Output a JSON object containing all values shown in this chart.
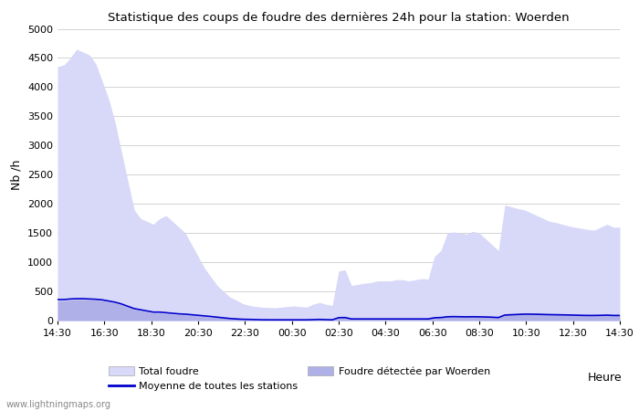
{
  "title": "Statistique des coups de foudre des dernières 24h pour la station: Woerden",
  "xlabel": "Heure",
  "ylabel": "Nb /h",
  "watermark": "www.lightningmaps.org",
  "ylim": [
    0,
    5000
  ],
  "yticks": [
    0,
    500,
    1000,
    1500,
    2000,
    2500,
    3000,
    3500,
    4000,
    4500,
    5000
  ],
  "xtick_labels": [
    "14:30",
    "16:30",
    "18:30",
    "20:30",
    "22:30",
    "00:30",
    "02:30",
    "04:30",
    "06:30",
    "08:30",
    "10:30",
    "12:30",
    "14:30"
  ],
  "color_total": "#d8d8f8",
  "color_woerden": "#b0b0e8",
  "color_mean": "#0000cc",
  "total_foudre": [
    4350,
    4380,
    4500,
    4650,
    4600,
    4550,
    4400,
    4100,
    3800,
    3400,
    2900,
    2400,
    1900,
    1750,
    1700,
    1650,
    1750,
    1800,
    1700,
    1600,
    1500,
    1300,
    1100,
    900,
    750,
    600,
    500,
    400,
    350,
    290,
    260,
    240,
    230,
    225,
    220,
    230,
    240,
    250,
    240,
    230,
    280,
    310,
    280,
    260,
    850,
    870,
    600,
    620,
    640,
    650,
    680,
    680,
    680,
    700,
    700,
    680,
    700,
    720,
    710,
    1100,
    1200,
    1500,
    1520,
    1500,
    1480,
    1530,
    1500,
    1400,
    1300,
    1200,
    1980,
    1950,
    1920,
    1900,
    1850,
    1800,
    1750,
    1700,
    1680,
    1650,
    1620,
    1600,
    1580,
    1560,
    1550,
    1600,
    1650,
    1600,
    1600
  ],
  "woerden_foudre": [
    340,
    340,
    350,
    360,
    360,
    355,
    350,
    340,
    320,
    300,
    270,
    230,
    190,
    170,
    150,
    130,
    130,
    120,
    110,
    100,
    100,
    90,
    80,
    70,
    60,
    50,
    40,
    30,
    25,
    20,
    18,
    15,
    12,
    12,
    12,
    12,
    12,
    12,
    12,
    12,
    15,
    18,
    15,
    12,
    50,
    55,
    30,
    30,
    30,
    30,
    30,
    30,
    30,
    30,
    30,
    30,
    30,
    30,
    30,
    50,
    55,
    70,
    72,
    70,
    68,
    70,
    68,
    65,
    60,
    55,
    100,
    105,
    110,
    115,
    115,
    110,
    108,
    105,
    102,
    100,
    98,
    95,
    92,
    90,
    90,
    92,
    95,
    90,
    90
  ],
  "mean_foudre": [
    360,
    360,
    370,
    375,
    375,
    370,
    365,
    355,
    335,
    315,
    285,
    245,
    205,
    185,
    165,
    145,
    145,
    135,
    125,
    115,
    110,
    100,
    90,
    80,
    70,
    58,
    46,
    35,
    28,
    22,
    20,
    17,
    14,
    13,
    13,
    13,
    13,
    13,
    13,
    13,
    16,
    20,
    16,
    13,
    50,
    52,
    28,
    28,
    28,
    28,
    28,
    28,
    28,
    28,
    28,
    28,
    28,
    28,
    28,
    48,
    52,
    65,
    68,
    66,
    64,
    66,
    64,
    62,
    58,
    52,
    95,
    100,
    105,
    110,
    110,
    108,
    105,
    102,
    100,
    98,
    96,
    93,
    90,
    88,
    88,
    90,
    93,
    88,
    88
  ]
}
